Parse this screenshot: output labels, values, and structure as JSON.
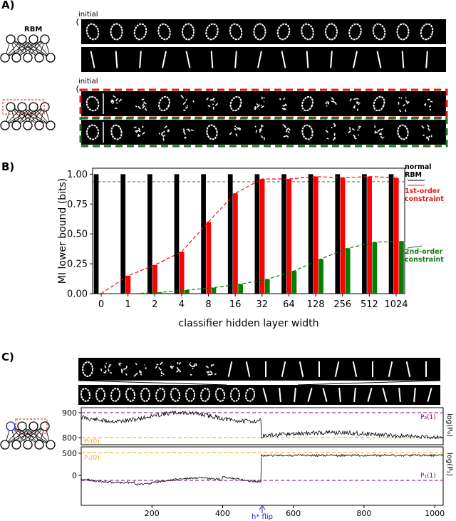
{
  "panel_labels": {
    "a": "A)",
    "b": "B)",
    "c": "C)"
  },
  "panel_a": {
    "rbm_label": "RBM",
    "initial_label": "initial",
    "row1_kind": "zero-digit",
    "row2_kind": "one-digit",
    "row3_kind": "constrained-red",
    "row4_kind": "constrained-green",
    "colors": {
      "red": "#e31a1c",
      "green": "#1a7a1a"
    }
  },
  "panel_c": {
    "tick_labels": [
      "200",
      "400",
      "600",
      "800",
      "1000"
    ],
    "flip_label": "h* flip",
    "top": {
      "y_ticks": [
        "900",
        "800"
      ],
      "ylabel": "log(P₀)",
      "ref_high_label": "P₀(1)",
      "ref_low_label": "P₀(0)"
    },
    "bottom": {
      "y_ticks": [
        "500",
        "0"
      ],
      "ylabel": "log(P₁)",
      "ref_high_label": "P₁(0)",
      "ref_low_label": "P₁(1)"
    },
    "colors": {
      "purple": "#800080",
      "orange": "#ffa500",
      "blue": "#1f1fd0"
    }
  },
  "chart_data": {
    "type": "bar",
    "categories": [
      "0",
      "1",
      "2",
      "4",
      "8",
      "16",
      "32",
      "64",
      "128",
      "256",
      "512",
      "1024"
    ],
    "xlabel": "classifier hidden layer width",
    "ylabel": "MI lower bound (bits)",
    "ylim": [
      0,
      1.05
    ],
    "yticks": [
      "0.00",
      "0.25",
      "0.50",
      "0.75",
      "1.00"
    ],
    "series": [
      {
        "name": "normal RBM",
        "color": "#000000",
        "values": [
          1,
          1,
          1,
          1,
          1,
          1,
          1,
          1,
          1,
          1,
          1,
          1
        ]
      },
      {
        "name": "1st-order constraint",
        "color": "#ff0000",
        "values": [
          0.0,
          0.15,
          0.24,
          0.35,
          0.6,
          0.84,
          0.96,
          0.96,
          0.98,
          0.97,
          0.98,
          0.97
        ]
      },
      {
        "name": "2nd-order constraint",
        "color": "#008000",
        "values": [
          0.0,
          0.0,
          0.01,
          0.03,
          0.05,
          0.08,
          0.12,
          0.19,
          0.29,
          0.38,
          0.43,
          0.44
        ]
      }
    ],
    "legend_lines": [
      "normal",
      "RBM",
      "1st-order",
      "constraint",
      "2nd-order",
      "constraint"
    ]
  }
}
